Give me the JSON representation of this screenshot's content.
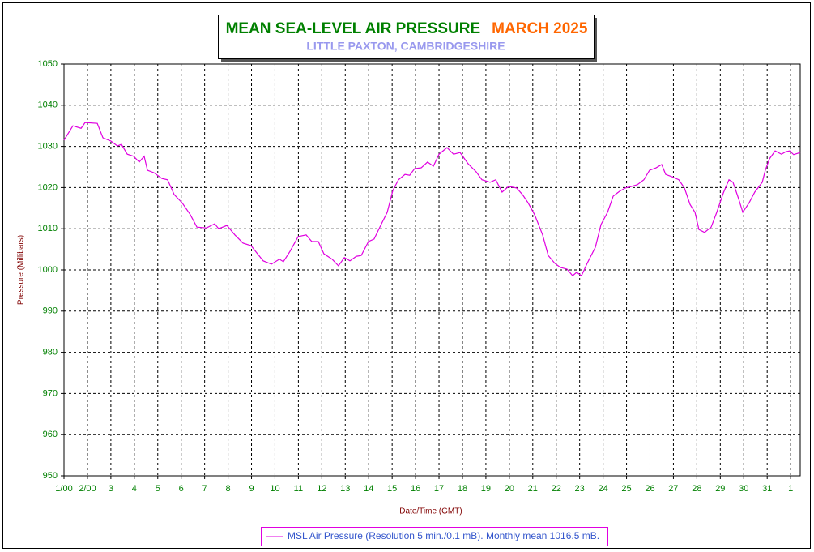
{
  "chart_data": {
    "type": "line",
    "title": "MEAN SEA-LEVEL AIR PRESSURE",
    "title_period": "MARCH 2025",
    "subtitle": "LITTLE PAXTON, CAMBRIDGESHIRE",
    "ylabel": "Pressure (Millibars)",
    "xlabel": "Date/Time (GMT)",
    "grid": true,
    "xlim": [
      0,
      31.41
    ],
    "ylim": [
      950,
      1050
    ],
    "yticks": [
      950,
      960,
      970,
      980,
      990,
      1000,
      1010,
      1020,
      1030,
      1040,
      1050
    ],
    "xticks": [
      {
        "value": 0,
        "label": "1/00"
      },
      {
        "value": 1,
        "label": "2/00"
      },
      {
        "value": 2,
        "label": "3"
      },
      {
        "value": 3,
        "label": "4"
      },
      {
        "value": 4,
        "label": "5"
      },
      {
        "value": 5,
        "label": "6"
      },
      {
        "value": 6,
        "label": "7"
      },
      {
        "value": 7,
        "label": "8"
      },
      {
        "value": 8,
        "label": "9"
      },
      {
        "value": 9,
        "label": "10"
      },
      {
        "value": 10,
        "label": "11"
      },
      {
        "value": 11,
        "label": "12"
      },
      {
        "value": 12,
        "label": "13"
      },
      {
        "value": 13,
        "label": "14"
      },
      {
        "value": 14,
        "label": "15"
      },
      {
        "value": 15,
        "label": "16"
      },
      {
        "value": 16,
        "label": "17"
      },
      {
        "value": 17,
        "label": "18"
      },
      {
        "value": 18,
        "label": "19"
      },
      {
        "value": 19,
        "label": "20"
      },
      {
        "value": 20,
        "label": "21"
      },
      {
        "value": 21,
        "label": "22"
      },
      {
        "value": 22,
        "label": "23"
      },
      {
        "value": 23,
        "label": "24"
      },
      {
        "value": 24,
        "label": "25"
      },
      {
        "value": 25,
        "label": "26"
      },
      {
        "value": 26,
        "label": "27"
      },
      {
        "value": 27,
        "label": "28"
      },
      {
        "value": 28,
        "label": "29"
      },
      {
        "value": 29,
        "label": "30"
      },
      {
        "value": 30,
        "label": "31"
      },
      {
        "value": 31,
        "label": "1"
      }
    ],
    "x": [
      0,
      0.38,
      0.73,
      0.9,
      1.42,
      1.66,
      2.0,
      2.28,
      2.45,
      2.7,
      2.97,
      3.21,
      3.42,
      3.56,
      3.84,
      4.18,
      4.42,
      4.7,
      5.04,
      5.39,
      5.67,
      6.08,
      6.43,
      6.6,
      6.95,
      7.29,
      7.64,
      7.98,
      8.26,
      8.5,
      8.85,
      9.19,
      9.36,
      9.64,
      9.99,
      10.33,
      10.57,
      10.85,
      11.09,
      11.44,
      11.71,
      11.96,
      12.2,
      12.47,
      12.68,
      12.99,
      13.23,
      13.51,
      13.79,
      14.03,
      14.27,
      14.55,
      14.75,
      14.96,
      15.24,
      15.51,
      15.76,
      16.0,
      16.34,
      16.62,
      16.9,
      17.24,
      17.59,
      17.83,
      18.18,
      18.42,
      18.69,
      18.97,
      19.31,
      19.56,
      19.8,
      20.08,
      20.42,
      20.66,
      20.94,
      21.18,
      21.46,
      21.7,
      21.87,
      22.08,
      22.32,
      22.67,
      22.91,
      23.19,
      23.43,
      23.7,
      23.95,
      24.22,
      24.46,
      24.74,
      24.98,
      25.26,
      25.5,
      25.67,
      25.95,
      26.23,
      26.47,
      26.71,
      26.92,
      27.09,
      27.33,
      27.61,
      27.85,
      28.13,
      28.37,
      28.54,
      28.78,
      28.96,
      29.23,
      29.47,
      29.79,
      29.92,
      30.1,
      30.34,
      30.61,
      30.79,
      30.96,
      31.13,
      31.41
    ],
    "series": [
      {
        "name": "MSL Air Pressure (Resolution 5 min./0.1 mB). Monthly mean 1016.5 mB.",
        "color": "#e000e0",
        "values": [
          1031.5,
          1035.0,
          1034.4,
          1035.8,
          1035.6,
          1032.1,
          1031.3,
          1030.1,
          1030.5,
          1028.1,
          1027.6,
          1026.2,
          1027.6,
          1024.2,
          1023.6,
          1022.2,
          1021.9,
          1018.3,
          1016.3,
          1013.4,
          1010.4,
          1010.2,
          1011.2,
          1010.0,
          1010.8,
          1008.5,
          1006.5,
          1005.9,
          1003.9,
          1002.2,
          1001.4,
          1002.6,
          1002.0,
          1004.5,
          1008.1,
          1008.5,
          1006.9,
          1006.9,
          1003.9,
          1002.6,
          1001.0,
          1003.0,
          1002.2,
          1003.3,
          1003.5,
          1006.9,
          1007.5,
          1010.8,
          1014.0,
          1019.3,
          1021.9,
          1023.2,
          1023.0,
          1024.6,
          1024.8,
          1026.2,
          1025.2,
          1028.1,
          1029.7,
          1028.1,
          1028.5,
          1025.8,
          1023.8,
          1021.9,
          1021.3,
          1021.9,
          1018.9,
          1020.3,
          1019.9,
          1018.3,
          1016.3,
          1013.4,
          1008.5,
          1003.5,
          1001.6,
          1000.6,
          1000.2,
          998.6,
          999.4,
          998.6,
          1001.6,
          1005.5,
          1011.0,
          1014.0,
          1017.9,
          1019.1,
          1019.9,
          1020.3,
          1020.7,
          1021.9,
          1024.2,
          1024.8,
          1025.6,
          1023.2,
          1022.6,
          1021.9,
          1019.9,
          1015.9,
          1014.0,
          1009.8,
          1009.1,
          1010.4,
          1014.0,
          1018.7,
          1021.9,
          1021.3,
          1017.3,
          1014.0,
          1016.3,
          1018.9,
          1021.3,
          1024.2,
          1027.0,
          1028.9,
          1028.1,
          1028.7,
          1028.9,
          1028.0,
          1028.5
        ]
      }
    ]
  }
}
